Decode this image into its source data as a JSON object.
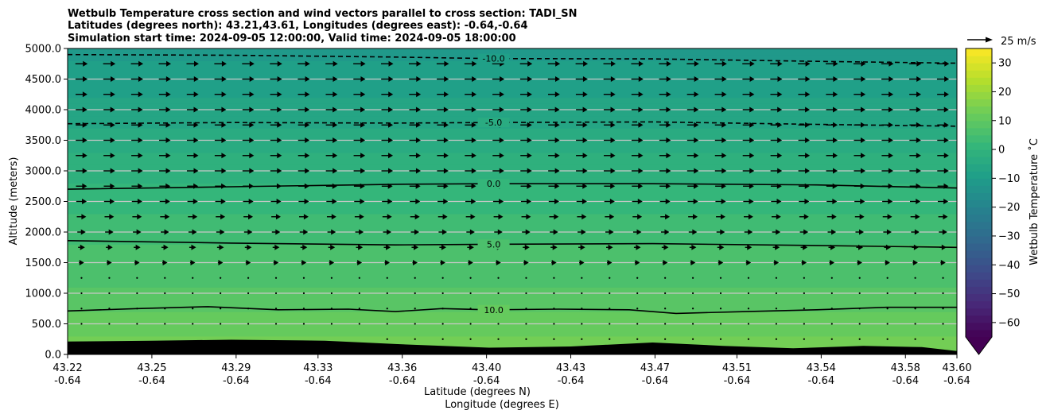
{
  "chart_data": {
    "type": "heatmap",
    "title_lines": [
      "Wetbulb Temperature cross section and wind vectors parallel to cross section: TADI_SN",
      "Latitudes (degrees north): 43.21,43.61, Longitudes (degrees east): -0.64,-0.64",
      "Simulation start time: 2024-09-05 12:00:00, Valid time: 2024-09-05 18:00:00"
    ],
    "xlabel": "Latitude (degrees N)",
    "xlabel2": "Longitude (degrees E)",
    "ylabel": "Altitude (meters)",
    "xlim": [
      43.22,
      43.6
    ],
    "ylim": [
      0,
      5000
    ],
    "grid": "horizontal",
    "x_ticks": [
      {
        "lat": "43.22",
        "lon": "-0.64",
        "value": 43.22
      },
      {
        "lat": "43.25",
        "lon": "-0.64",
        "value": 43.256
      },
      {
        "lat": "43.29",
        "lon": "-0.64",
        "value": 43.292
      },
      {
        "lat": "43.33",
        "lon": "-0.64",
        "value": 43.327
      },
      {
        "lat": "43.36",
        "lon": "-0.64",
        "value": 43.363
      },
      {
        "lat": "43.40",
        "lon": "-0.64",
        "value": 43.399
      },
      {
        "lat": "43.43",
        "lon": "-0.64",
        "value": 43.435
      },
      {
        "lat": "43.47",
        "lon": "-0.64",
        "value": 43.471
      },
      {
        "lat": "43.51",
        "lon": "-0.64",
        "value": 43.506
      },
      {
        "lat": "43.54",
        "lon": "-0.64",
        "value": 43.542
      },
      {
        "lat": "43.58",
        "lon": "-0.64",
        "value": 43.578
      },
      {
        "lat": "43.60",
        "lon": "-0.64",
        "value": 43.6
      }
    ],
    "y_ticks": [
      {
        "label": "0.0",
        "value": 0
      },
      {
        "label": "500.0",
        "value": 500
      },
      {
        "label": "1000.0",
        "value": 1000
      },
      {
        "label": "1500.0",
        "value": 1500
      },
      {
        "label": "2000.0",
        "value": 2000
      },
      {
        "label": "2500.0",
        "value": 2500
      },
      {
        "label": "3000.0",
        "value": 3000
      },
      {
        "label": "3500.0",
        "value": 3500
      },
      {
        "label": "4000.0",
        "value": 4000
      },
      {
        "label": "4500.0",
        "value": 4500
      },
      {
        "label": "5000.0",
        "value": 5000
      }
    ],
    "colorbar": {
      "label": "Wetbulb Temperature $^\\circ$C",
      "label_text": "Wetbulb Temperature ˚C",
      "range": [
        -65,
        35
      ],
      "extend": "min",
      "cmap": "viridis",
      "ticks": [
        {
          "label": "30",
          "value": 30
        },
        {
          "label": "20",
          "value": 20
        },
        {
          "label": "10",
          "value": 10
        },
        {
          "label": "0",
          "value": 0
        },
        {
          "label": "−10",
          "value": -10
        },
        {
          "label": "−20",
          "value": -20
        },
        {
          "label": "−30",
          "value": -30
        },
        {
          "label": "−40",
          "value": -40
        },
        {
          "label": "−50",
          "value": -50
        },
        {
          "label": "−60",
          "value": -60
        }
      ]
    },
    "temperature_profile": [
      {
        "alt": 0,
        "t": 15
      },
      {
        "alt": 500,
        "t": 11
      },
      {
        "alt": 1000,
        "t": 8
      },
      {
        "alt": 1500,
        "t": 6
      },
      {
        "alt": 2000,
        "t": 4
      },
      {
        "alt": 2500,
        "t": 1
      },
      {
        "alt": 3000,
        "t": -1
      },
      {
        "alt": 3500,
        "t": -4
      },
      {
        "alt": 4000,
        "t": -6.5
      },
      {
        "alt": 4500,
        "t": -9
      },
      {
        "alt": 5000,
        "t": -11
      }
    ],
    "terrain": [
      {
        "x": 43.22,
        "alt": 210
      },
      {
        "x": 43.256,
        "alt": 225
      },
      {
        "x": 43.29,
        "alt": 240
      },
      {
        "x": 43.33,
        "alt": 225
      },
      {
        "x": 43.36,
        "alt": 170
      },
      {
        "x": 43.4,
        "alt": 110
      },
      {
        "x": 43.435,
        "alt": 130
      },
      {
        "x": 43.47,
        "alt": 195
      },
      {
        "x": 43.5,
        "alt": 140
      },
      {
        "x": 43.53,
        "alt": 100
      },
      {
        "x": 43.56,
        "alt": 140
      },
      {
        "x": 43.585,
        "alt": 120
      },
      {
        "x": 43.6,
        "alt": 55
      }
    ],
    "contours": [
      {
        "level": "-10.0",
        "style": "dashed",
        "label_x": 43.4,
        "points": [
          [
            43.22,
            4900
          ],
          [
            43.29,
            4890
          ],
          [
            43.36,
            4860
          ],
          [
            43.4,
            4835
          ],
          [
            43.47,
            4830
          ],
          [
            43.54,
            4790
          ],
          [
            43.6,
            4760
          ]
        ]
      },
      {
        "level": "-5.0",
        "style": "dashed",
        "label_x": 43.4,
        "points": [
          [
            43.22,
            3770
          ],
          [
            43.29,
            3790
          ],
          [
            43.36,
            3780
          ],
          [
            43.4,
            3790
          ],
          [
            43.47,
            3800
          ],
          [
            43.54,
            3760
          ],
          [
            43.6,
            3730
          ]
        ]
      },
      {
        "level": "0.0",
        "style": "solid",
        "label_x": 43.4,
        "points": [
          [
            43.22,
            2700
          ],
          [
            43.29,
            2740
          ],
          [
            43.36,
            2780
          ],
          [
            43.4,
            2790
          ],
          [
            43.47,
            2790
          ],
          [
            43.54,
            2770
          ],
          [
            43.6,
            2720
          ]
        ]
      },
      {
        "level": "5.0",
        "style": "solid",
        "label_x": 43.4,
        "points": [
          [
            43.22,
            1860
          ],
          [
            43.29,
            1820
          ],
          [
            43.36,
            1790
          ],
          [
            43.4,
            1800
          ],
          [
            43.47,
            1810
          ],
          [
            43.54,
            1780
          ],
          [
            43.6,
            1750
          ]
        ]
      },
      {
        "level": "10.0",
        "style": "solid",
        "label_x": 43.4,
        "points": [
          [
            43.22,
            710
          ],
          [
            43.25,
            750
          ],
          [
            43.28,
            780
          ],
          [
            43.31,
            730
          ],
          [
            43.34,
            740
          ],
          [
            43.36,
            700
          ],
          [
            43.38,
            750
          ],
          [
            43.4,
            730
          ],
          [
            43.43,
            740
          ],
          [
            43.46,
            730
          ],
          [
            43.48,
            670
          ],
          [
            43.51,
            700
          ],
          [
            43.54,
            730
          ],
          [
            43.57,
            770
          ],
          [
            43.6,
            770
          ]
        ]
      }
    ],
    "wind": {
      "reference": "25 m/s",
      "reference_speed": 25,
      "direction": "east",
      "columns": 32,
      "level_spacing": 250,
      "speed_profile": [
        {
          "alt": 250,
          "speed": 0.6
        },
        {
          "alt": 750,
          "speed": 0.8
        },
        {
          "alt": 1000,
          "speed": 1.0
        },
        {
          "alt": 1250,
          "speed": 1.2
        },
        {
          "alt": 1500,
          "speed": 5
        },
        {
          "alt": 2000,
          "speed": 8
        },
        {
          "alt": 2500,
          "speed": 10
        },
        {
          "alt": 3000,
          "speed": 11
        },
        {
          "alt": 4000,
          "speed": 11
        },
        {
          "alt": 5000,
          "speed": 12
        }
      ]
    }
  }
}
